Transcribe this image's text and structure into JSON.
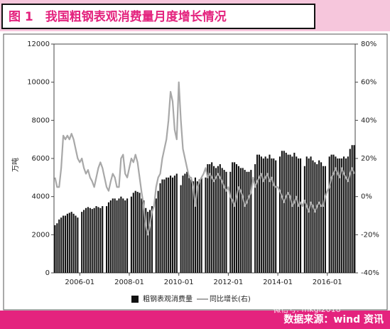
{
  "chart_data": {
    "type": "bar-line",
    "title": "图 1　我国粗钢表观消费量月度增长情况",
    "y_label": "万吨",
    "source": "数据来源：wind 资讯",
    "watermark": "微信号: mkgl2018",
    "categories": [
      null,
      null,
      null,
      null,
      null,
      null,
      null,
      null,
      null,
      null,
      null,
      null,
      "2006-01",
      null,
      null,
      null,
      null,
      null,
      null,
      null,
      null,
      null,
      null,
      null,
      null,
      null,
      null,
      null,
      null,
      null,
      null,
      null,
      null,
      null,
      null,
      null,
      "2008-01",
      null,
      null,
      null,
      null,
      null,
      null,
      null,
      null,
      null,
      null,
      null,
      null,
      null,
      null,
      null,
      null,
      null,
      null,
      null,
      null,
      null,
      null,
      null,
      "2010-01",
      null,
      null,
      null,
      null,
      null,
      null,
      null,
      null,
      null,
      null,
      null,
      null,
      null,
      null,
      null,
      null,
      null,
      null,
      null,
      null,
      null,
      null,
      null,
      "2012-01",
      null,
      null,
      null,
      null,
      null,
      null,
      null,
      null,
      null,
      null,
      null,
      null,
      null,
      null,
      null,
      null,
      null,
      null,
      null,
      null,
      null,
      null,
      null,
      "2014-01",
      null,
      null,
      null,
      null,
      null,
      null,
      null,
      null,
      null,
      null,
      null,
      null,
      null,
      null,
      null,
      null,
      null,
      null,
      null,
      null,
      null,
      null,
      null,
      "2016-01",
      null,
      null,
      null,
      null,
      null,
      null,
      null,
      null,
      null,
      null,
      null,
      null,
      null
    ],
    "series": [
      {
        "name": "粗钢表观消费量",
        "color": "#111111",
        "kind": "bar",
        "values": [
          2500,
          2600,
          2800,
          2900,
          3000,
          3000,
          3100,
          3150,
          3200,
          3100,
          3000,
          2900,
          null,
          3200,
          3300,
          3400,
          3450,
          3400,
          3350,
          3400,
          3500,
          3450,
          3400,
          3500,
          null,
          3500,
          3700,
          3800,
          3900,
          3900,
          3800,
          3900,
          4000,
          3900,
          3800,
          3900,
          null,
          4000,
          4200,
          4300,
          4250,
          4200,
          3900,
          3800,
          3400,
          3200,
          3300,
          3500,
          null,
          3900,
          4300,
          4700,
          4900,
          4900,
          5000,
          5000,
          5100,
          5000,
          5100,
          5200,
          null,
          4600,
          5100,
          5200,
          5300,
          5100,
          4900,
          4800,
          5000,
          4800,
          4900,
          5000,
          null,
          5000,
          5700,
          5700,
          5800,
          5600,
          5500,
          5600,
          5700,
          5500,
          5400,
          5300,
          null,
          5300,
          5800,
          5800,
          5700,
          5600,
          5500,
          5500,
          5400,
          5300,
          5300,
          5400,
          null,
          5700,
          6200,
          6200,
          6100,
          6000,
          6100,
          6000,
          6200,
          6000,
          6000,
          5900,
          null,
          6100,
          6400,
          6400,
          6300,
          6200,
          6200,
          6100,
          6300,
          6100,
          6000,
          6000,
          null,
          5600,
          6100,
          6000,
          6100,
          5900,
          5800,
          5700,
          5900,
          5800,
          5600,
          5600,
          null,
          6100,
          6200,
          6200,
          6100,
          6000,
          6000,
          6000,
          6100,
          6000,
          6100,
          6500,
          6700,
          6700
        ]
      },
      {
        "name": "同比增长(右)",
        "color": "#a8a8a8",
        "kind": "line",
        "axis": "y2",
        "values": [
          10,
          5,
          5,
          15,
          32,
          30,
          32,
          30,
          33,
          30,
          25,
          20,
          18,
          20,
          15,
          12,
          14,
          10,
          8,
          5,
          10,
          15,
          18,
          15,
          10,
          5,
          3,
          8,
          12,
          10,
          5,
          5,
          20,
          22,
          12,
          10,
          15,
          20,
          18,
          22,
          18,
          10,
          2,
          -5,
          -15,
          -20,
          -15,
          -8,
          -5,
          5,
          10,
          12,
          20,
          25,
          30,
          40,
          55,
          50,
          35,
          30,
          60,
          40,
          25,
          20,
          15,
          10,
          10,
          5,
          -5,
          5,
          8,
          10,
          12,
          15,
          10,
          12,
          10,
          8,
          10,
          12,
          10,
          8,
          5,
          3,
          5,
          0,
          -2,
          -5,
          0,
          5,
          3,
          0,
          -5,
          -3,
          0,
          2,
          10,
          5,
          8,
          10,
          12,
          8,
          10,
          12,
          8,
          10,
          6,
          5,
          5,
          3,
          0,
          -3,
          0,
          2,
          0,
          -5,
          -3,
          0,
          -5,
          -3,
          -5,
          -2,
          -5,
          -8,
          -3,
          -5,
          -8,
          -5,
          -3,
          -5,
          -5,
          0,
          3,
          5,
          10,
          12,
          15,
          12,
          10,
          15,
          12,
          10,
          8,
          12,
          15,
          12
        ]
      }
    ],
    "ylim": [
      0,
      12000
    ],
    "yticks": [
      0,
      2000,
      4000,
      6000,
      8000,
      10000,
      12000
    ],
    "y2lim": [
      -40,
      80
    ],
    "y2ticks": [
      {
        "value": -40,
        "label": "-40%"
      },
      {
        "value": -20,
        "label": "-20%"
      },
      {
        "value": 0,
        "label": "0%"
      },
      {
        "value": 20,
        "label": "20%"
      },
      {
        "value": 40,
        "label": "40%"
      },
      {
        "value": 60,
        "label": "60%"
      },
      {
        "value": 80,
        "label": "80%"
      }
    ],
    "grid": false
  }
}
